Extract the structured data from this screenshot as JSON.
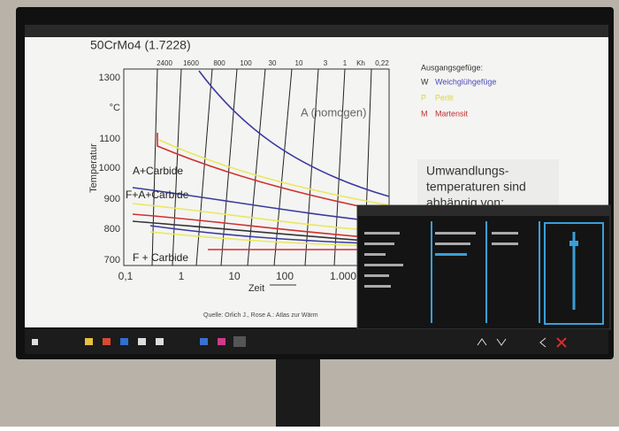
{
  "slide": {
    "title": "50CrMo4 (1.7228)",
    "chart": {
      "y_axis_label": "Temperatur",
      "y_ticks": [
        "1300",
        "°C",
        "1100",
        "1000",
        "900",
        "800",
        "700"
      ],
      "x_axis_label": "Zeit",
      "x_ticks": [
        "0,1",
        "1",
        "10",
        "100",
        "1.000"
      ],
      "top_ticks": [
        "2400",
        "1600",
        "800",
        "100",
        "30",
        "10",
        "3",
        "1",
        "Kh",
        "0,22"
      ],
      "regions": [
        "A (homogen)",
        "A+Carbide",
        "F+A+Carbide",
        "F + Carbide"
      ]
    },
    "legend": {
      "title": "Ausgangsgefüge:",
      "items": [
        {
          "key": "W",
          "label": "Weichglühgefüge"
        },
        {
          "key": "P",
          "label": "Perlit"
        },
        {
          "key": "M",
          "label": "Martensit"
        }
      ]
    },
    "textbox": [
      "Umwandlungs-",
      "temperaturen sind",
      "abhängig von:"
    ],
    "source": "Quelle: Orlich J., Rose A.: Atlas zur Wärm"
  }
}
